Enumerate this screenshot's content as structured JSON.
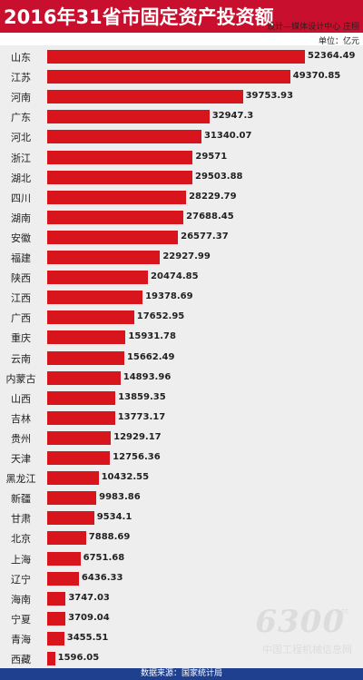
{
  "title": "2016年31省市固定资产投资额",
  "credit": "设计—媒体设计中心 庄栩",
  "unit": "单位：亿元",
  "source": "数据来源：国家统计局",
  "watermark": {
    "number": "6300",
    "suffix": ".net",
    "text": "中国工程机械信息网"
  },
  "colors": {
    "bar": "#d8141c",
    "header": "#c8102e",
    "footer": "#1f3f8f",
    "background": "#eeeeee"
  },
  "chart_data": {
    "type": "bar",
    "orientation": "horizontal",
    "title": "2016年31省市固定资产投资额",
    "unit": "单位：亿元",
    "categories": [
      "山东",
      "江苏",
      "河南",
      "广东",
      "河北",
      "浙江",
      "湖北",
      "四川",
      "湖南",
      "安徽",
      "福建",
      "陕西",
      "江西",
      "广西",
      "重庆",
      "云南",
      "内蒙古",
      "山西",
      "吉林",
      "贵州",
      "天津",
      "黑龙江",
      "新疆",
      "甘肃",
      "北京",
      "上海",
      "辽宁",
      "海南",
      "宁夏",
      "青海",
      "西藏"
    ],
    "values": [
      52364.49,
      49370.85,
      39753.93,
      32947.3,
      31340.07,
      29571,
      29503.88,
      28229.79,
      27688.45,
      26577.37,
      22927.99,
      20474.85,
      19378.69,
      17652.95,
      15931.78,
      15662.49,
      14893.96,
      13859.35,
      13773.17,
      12929.17,
      12756.36,
      10432.55,
      9983.86,
      9534.1,
      7888.69,
      6751.68,
      6436.33,
      3747.03,
      3709.04,
      3455.51,
      1596.05
    ],
    "labels": [
      "52364.49",
      "49370.85",
      "39753.93",
      "32947.3",
      "31340.07",
      "29571",
      "29503.88",
      "28229.79",
      "27688.45",
      "26577.37",
      "22927.99",
      "20474.85",
      "19378.69",
      "17652.95",
      "15931.78",
      "15662.49",
      "14893.96",
      "13859.35",
      "13773.17",
      "12929.17",
      "12756.36",
      "10432.55",
      "9983.86",
      "9534.1",
      "7888.69",
      "6751.68",
      "6436.33",
      "3747.03",
      "3709.04",
      "3455.51",
      "1596.05"
    ],
    "grid": false,
    "legend": "none"
  }
}
